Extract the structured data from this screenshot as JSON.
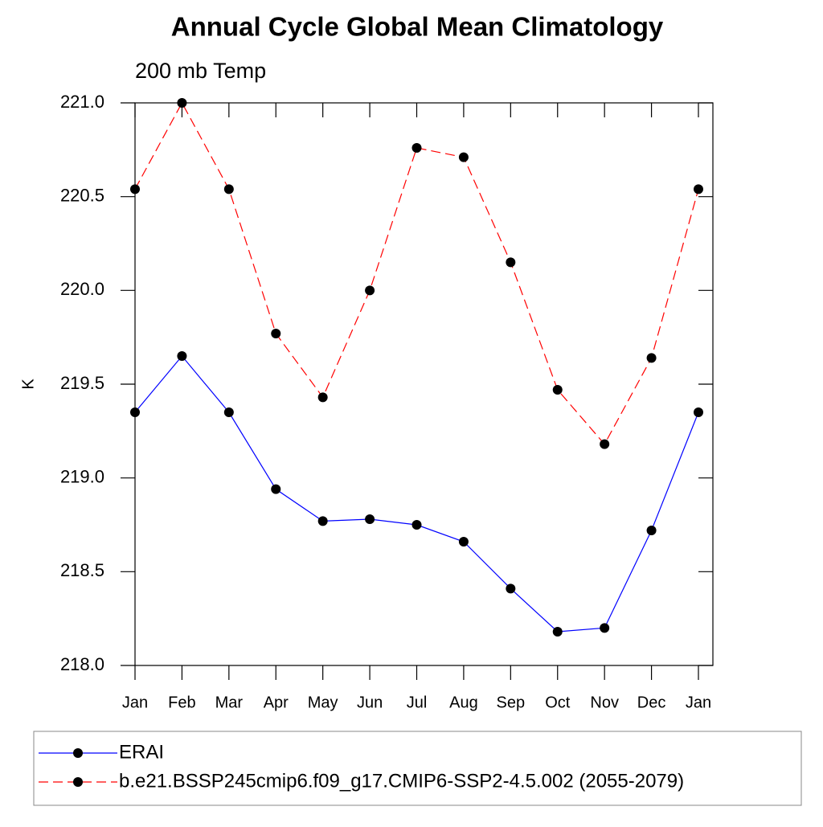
{
  "chart_data": {
    "type": "line",
    "title": "Annual Cycle Global Mean Climatology",
    "subtitle": "200 mb Temp",
    "y_label": "K",
    "categories": [
      "Jan",
      "Feb",
      "Mar",
      "Apr",
      "May",
      "Jun",
      "Jul",
      "Aug",
      "Sep",
      "Oct",
      "Nov",
      "Dec",
      "Jan"
    ],
    "series": [
      {
        "name": "ERAI",
        "color": "#0000ff",
        "line_style": "solid",
        "values": [
          219.35,
          219.65,
          219.35,
          218.94,
          218.77,
          218.78,
          218.75,
          218.66,
          218.41,
          218.18,
          218.2,
          218.72,
          219.35
        ]
      },
      {
        "name": "b.e21.BSSP245cmip6.f09_g17.CMIP6-SSP2-4.5.002 (2055-2079)",
        "color": "#ff0000",
        "line_style": "dashed",
        "values": [
          220.54,
          221.0,
          220.54,
          219.77,
          219.43,
          220.0,
          220.76,
          220.71,
          220.15,
          219.47,
          219.18,
          219.64,
          220.54
        ]
      }
    ],
    "ylim": [
      218,
      221
    ],
    "yticks": [
      {
        "value": 218,
        "label": "218.0"
      },
      218.5,
      {
        "value": 219,
        "label": "219.0"
      },
      219.5,
      {
        "value": 220,
        "label": "220.0"
      },
      220.5,
      {
        "value": 221,
        "label": "221.0"
      }
    ]
  }
}
